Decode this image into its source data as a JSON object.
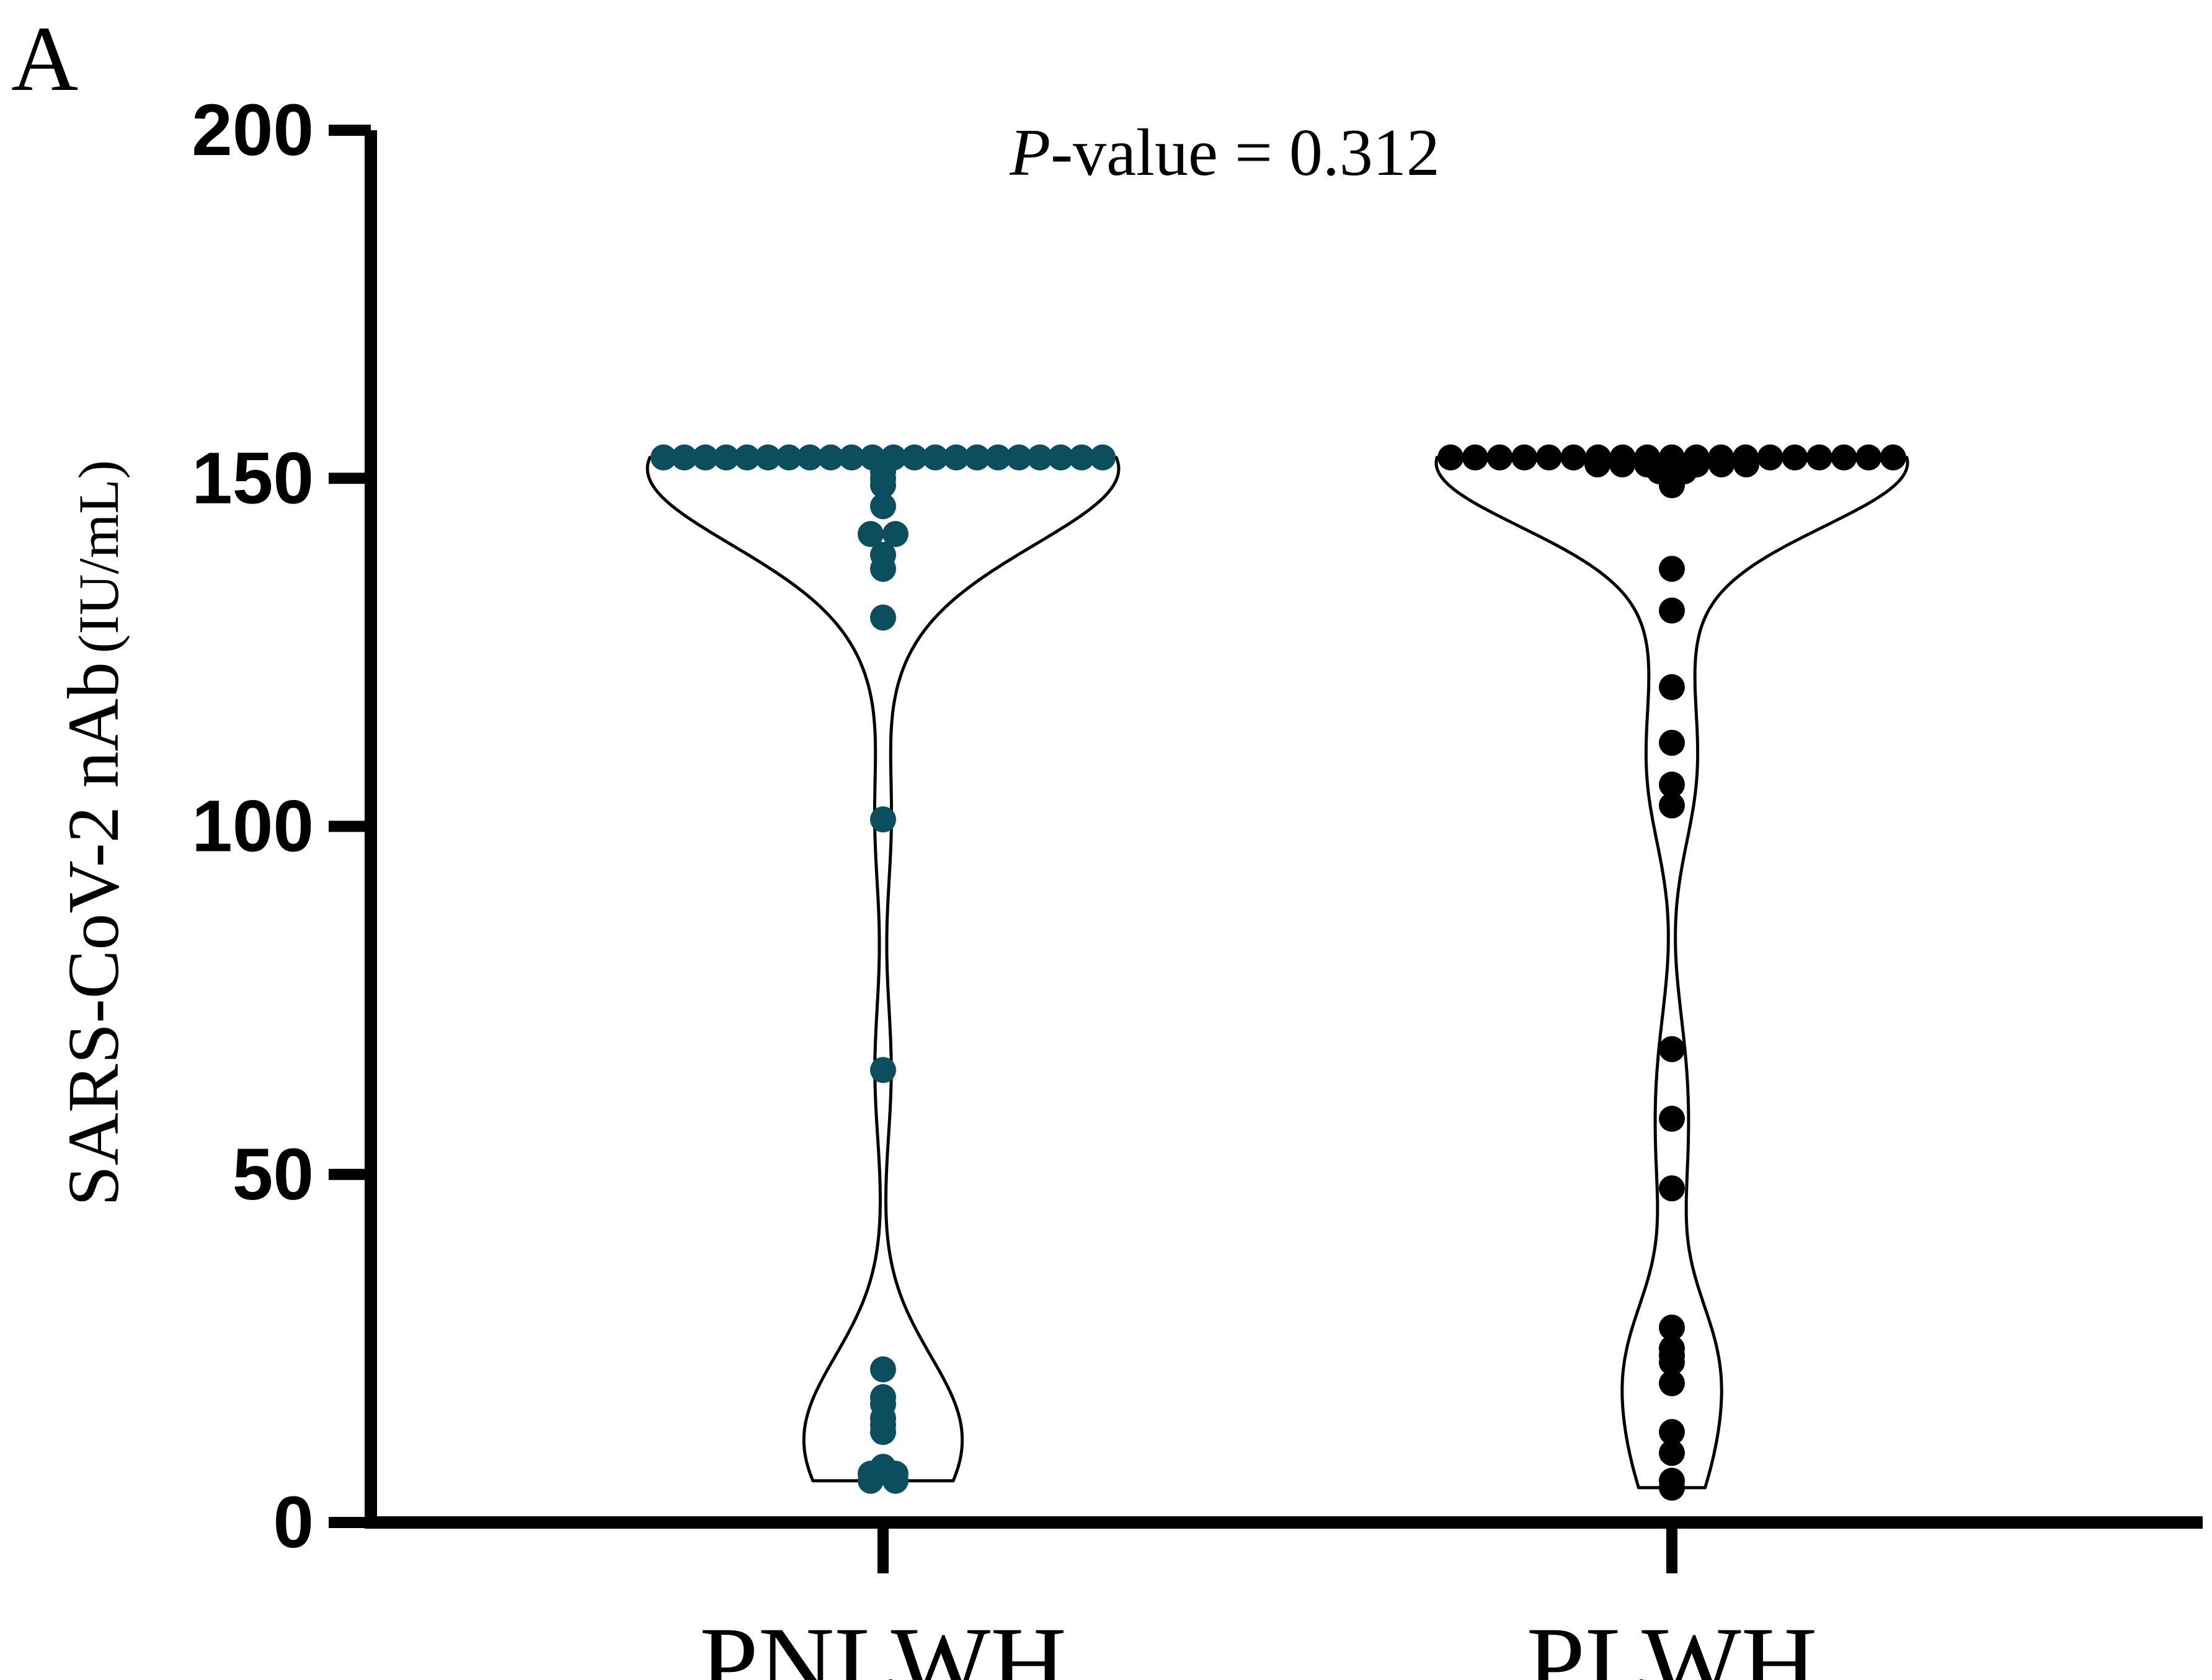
{
  "panel_label": "A",
  "annotation": {
    "italic": "P",
    "rest": "-value = 0.312"
  },
  "chart_data": {
    "type": "violin",
    "ylabel_main": "SARS-CoV-2 nAb",
    "ylabel_unit": "(IU/mL)",
    "ylim": [
      0,
      200
    ],
    "yticks": [
      0,
      50,
      100,
      150,
      200
    ],
    "categories": [
      "PNLWH",
      "PLWH"
    ],
    "colors": {
      "PNLWH": "#0b4f5f",
      "PLWH": "#000000"
    },
    "grid": false,
    "series": [
      {
        "name": "PNLWH",
        "values": [
          153,
          153,
          153,
          153,
          153,
          153,
          153,
          153,
          153,
          153,
          153,
          153,
          153,
          153,
          153,
          153,
          153,
          153,
          153,
          153,
          153,
          153,
          151,
          152,
          149,
          150,
          146,
          142,
          142,
          139,
          137,
          130,
          101,
          65,
          22,
          18,
          17,
          13,
          15,
          14,
          8,
          7,
          6,
          6,
          7
        ]
      },
      {
        "name": "PLWH",
        "values": [
          152,
          152,
          153,
          153,
          153,
          153,
          153,
          153,
          153,
          153,
          153,
          153,
          153,
          153,
          153,
          153,
          153,
          153,
          153,
          153,
          153,
          151,
          150,
          149,
          151,
          152,
          152,
          152,
          152,
          152,
          137,
          131,
          120,
          112,
          106,
          103,
          68,
          58,
          48,
          28,
          24,
          23,
          20,
          13,
          10,
          6,
          5,
          25
        ]
      }
    ]
  }
}
